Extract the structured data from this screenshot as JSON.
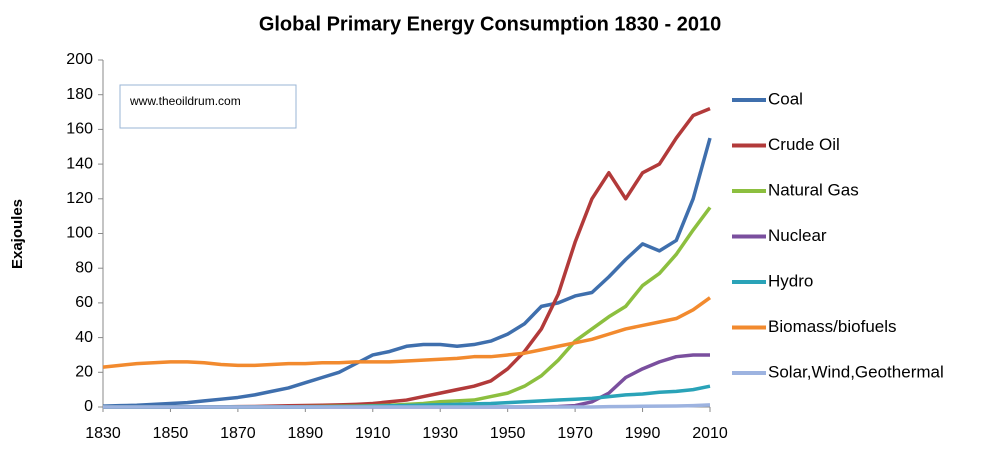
{
  "chart_data": {
    "type": "line",
    "title": "Global Primary Energy Consumption 1830 - 2010",
    "y_label": "Exajoules",
    "annotation": "www.theoildrum.com",
    "x": [
      1830,
      1835,
      1840,
      1845,
      1850,
      1855,
      1860,
      1865,
      1870,
      1875,
      1880,
      1885,
      1890,
      1895,
      1900,
      1905,
      1910,
      1915,
      1920,
      1925,
      1930,
      1935,
      1940,
      1945,
      1950,
      1955,
      1960,
      1965,
      1970,
      1975,
      1980,
      1985,
      1990,
      1995,
      2000,
      2005,
      2010
    ],
    "series": [
      {
        "name": "Coal",
        "color": "#3f6fad",
        "values": [
          0.5,
          0.8,
          1,
          1.5,
          2,
          2.5,
          3.5,
          4.5,
          5.5,
          7,
          9,
          11,
          14,
          17,
          20,
          25,
          30,
          32,
          35,
          36,
          36,
          35,
          36,
          38,
          42,
          48,
          58,
          60,
          64,
          66,
          75,
          85,
          94,
          90,
          96,
          120,
          155
        ]
      },
      {
        "name": "Crude Oil",
        "color": "#b23a3a",
        "values": [
          0,
          0,
          0,
          0,
          0,
          0,
          0,
          0.1,
          0.2,
          0.3,
          0.5,
          0.7,
          0.9,
          1,
          1.2,
          1.5,
          2,
          3,
          4,
          6,
          8,
          10,
          12,
          15,
          22,
          32,
          45,
          65,
          95,
          120,
          135,
          120,
          135,
          140,
          155,
          168,
          172
        ]
      },
      {
        "name": "Natural Gas",
        "color": "#8cbf3f",
        "values": [
          0,
          0,
          0,
          0,
          0,
          0,
          0,
          0,
          0,
          0,
          0,
          0.1,
          0.2,
          0.3,
          0.4,
          0.5,
          0.7,
          1,
          1.5,
          2,
          3,
          3.5,
          4,
          6,
          8,
          12,
          18,
          27,
          38,
          45,
          52,
          58,
          70,
          77,
          88,
          102,
          115
        ]
      },
      {
        "name": "Nuclear",
        "color": "#7a4f9e",
        "values": [
          0,
          0,
          0,
          0,
          0,
          0,
          0,
          0,
          0,
          0,
          0,
          0,
          0,
          0,
          0,
          0,
          0,
          0,
          0,
          0,
          0,
          0,
          0,
          0,
          0,
          0,
          0.1,
          0.3,
          0.8,
          3,
          8,
          17,
          22,
          26,
          29,
          30,
          30
        ]
      },
      {
        "name": "Hydro",
        "color": "#2aa3b8",
        "values": [
          0,
          0,
          0,
          0,
          0,
          0,
          0,
          0,
          0,
          0,
          0,
          0,
          0,
          0.1,
          0.2,
          0.3,
          0.5,
          0.7,
          0.9,
          1.1,
          1.3,
          1.5,
          1.8,
          2,
          2.5,
          3,
          3.5,
          4,
          4.5,
          5,
          6,
          7,
          7.5,
          8.5,
          9,
          10,
          12
        ]
      },
      {
        "name": "Biomass/biofuels",
        "color": "#f28a2e",
        "values": [
          23,
          24,
          25,
          25.5,
          26,
          26,
          25.5,
          24.5,
          24,
          24,
          24.5,
          25,
          25,
          25.5,
          25.5,
          26,
          26,
          26,
          26.5,
          27,
          27.5,
          28,
          29,
          29,
          30,
          31,
          33,
          35,
          37,
          39,
          42,
          45,
          47,
          49,
          51,
          56,
          63
        ]
      },
      {
        "name": "Solar,Wind,Geothermal",
        "color": "#9db3e0",
        "values": [
          0,
          0,
          0,
          0,
          0,
          0,
          0,
          0,
          0,
          0,
          0,
          0,
          0,
          0,
          0,
          0,
          0,
          0,
          0,
          0,
          0,
          0,
          0,
          0,
          0,
          0,
          0,
          0,
          0,
          0,
          0.2,
          0.3,
          0.4,
          0.5,
          0.6,
          0.8,
          1.2
        ]
      }
    ],
    "xlim": [
      1830,
      2010
    ],
    "xticks": [
      1830,
      1850,
      1870,
      1890,
      1910,
      1930,
      1950,
      1970,
      1990,
      2010
    ],
    "ylim": [
      0,
      200
    ],
    "yticks": [
      0,
      20,
      40,
      60,
      80,
      100,
      120,
      140,
      160,
      180,
      200
    ],
    "grid": false,
    "legend": "right"
  }
}
